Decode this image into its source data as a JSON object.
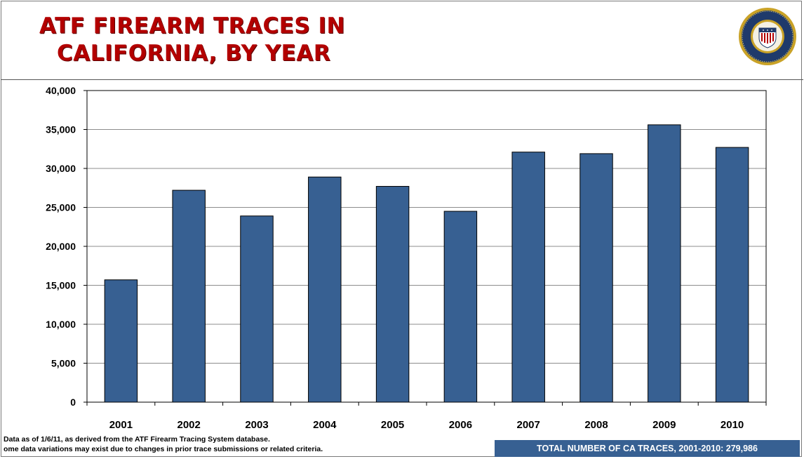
{
  "header": {
    "title_line1": "ATF FIREARM TRACES IN",
    "title_line2": "CALIFORNIA, BY YEAR"
  },
  "seal": {
    "icon": "atf-seal-icon",
    "colors": {
      "ring": "#1f3a6b",
      "gold": "#c9a227"
    }
  },
  "chart_data": {
    "type": "bar",
    "categories": [
      "2001",
      "2002",
      "2003",
      "2004",
      "2005",
      "2006",
      "2007",
      "2008",
      "2009",
      "2010"
    ],
    "values": [
      15700,
      27200,
      23900,
      28900,
      27700,
      24500,
      32100,
      31900,
      35600,
      32700
    ],
    "ylim": [
      0,
      40000
    ],
    "yticks": [
      0,
      5000,
      10000,
      15000,
      20000,
      25000,
      30000,
      35000,
      40000
    ],
    "ytick_labels": [
      "0",
      "5,000",
      "10,000",
      "15,000",
      "20,000",
      "25,000",
      "30,000",
      "35,000",
      "40,000"
    ],
    "grid": true,
    "bar_color": "#376092"
  },
  "footnote": {
    "line1": "Data as of 1/6/11, as derived from the ATF Firearm Tracing System database.",
    "line2": "ome data variations may exist due to changes in prior trace submissions or related  criteria."
  },
  "total": {
    "label": "TOTAL NUMBER OF CA TRACES, 2001-2010:  279,986"
  }
}
